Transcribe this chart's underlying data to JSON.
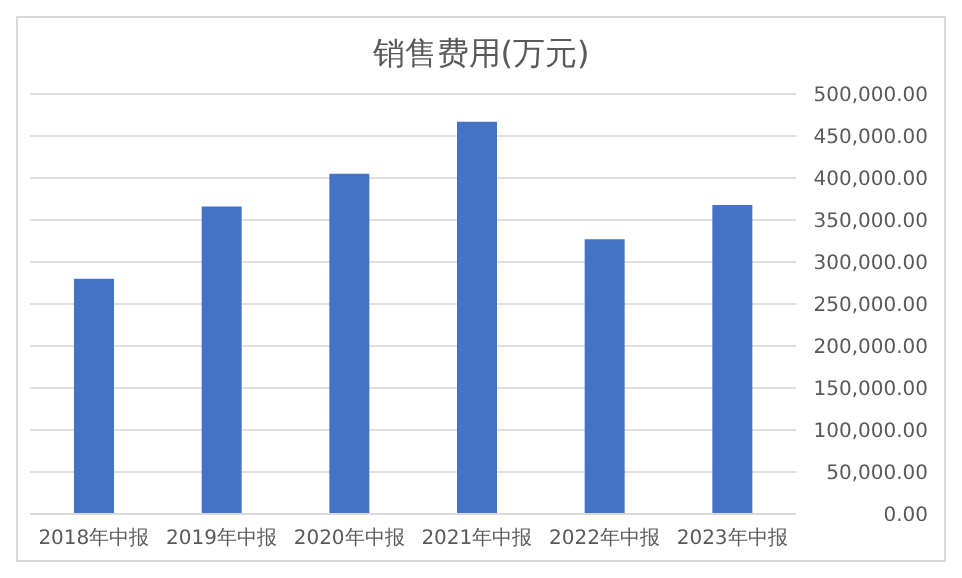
{
  "chart_data": {
    "type": "bar",
    "title": "销售费用(万元)",
    "categories": [
      "2018年中报",
      "2019年中报",
      "2020年中报",
      "2021年中报",
      "2022年中报",
      "2023年中报"
    ],
    "values": [
      280000,
      366000,
      405000,
      467000,
      327000,
      368000
    ],
    "color": "#4472c4",
    "ylim": [
      0,
      500000
    ],
    "yticks": [
      {
        "value": 0,
        "label": "0.00"
      },
      {
        "value": 50000,
        "label": "50,000.00"
      },
      {
        "value": 100000,
        "label": "100,000.00"
      },
      {
        "value": 150000,
        "label": "150,000.00"
      },
      {
        "value": 200000,
        "label": "200,000.00"
      },
      {
        "value": 250000,
        "label": "250,000.00"
      },
      {
        "value": 300000,
        "label": "300,000.00"
      },
      {
        "value": 350000,
        "label": "350,000.00"
      },
      {
        "value": 400000,
        "label": "400,000.00"
      },
      {
        "value": 450000,
        "label": "450,000.00"
      },
      {
        "value": 500000,
        "label": "500,000.00"
      }
    ],
    "grid": "y"
  }
}
